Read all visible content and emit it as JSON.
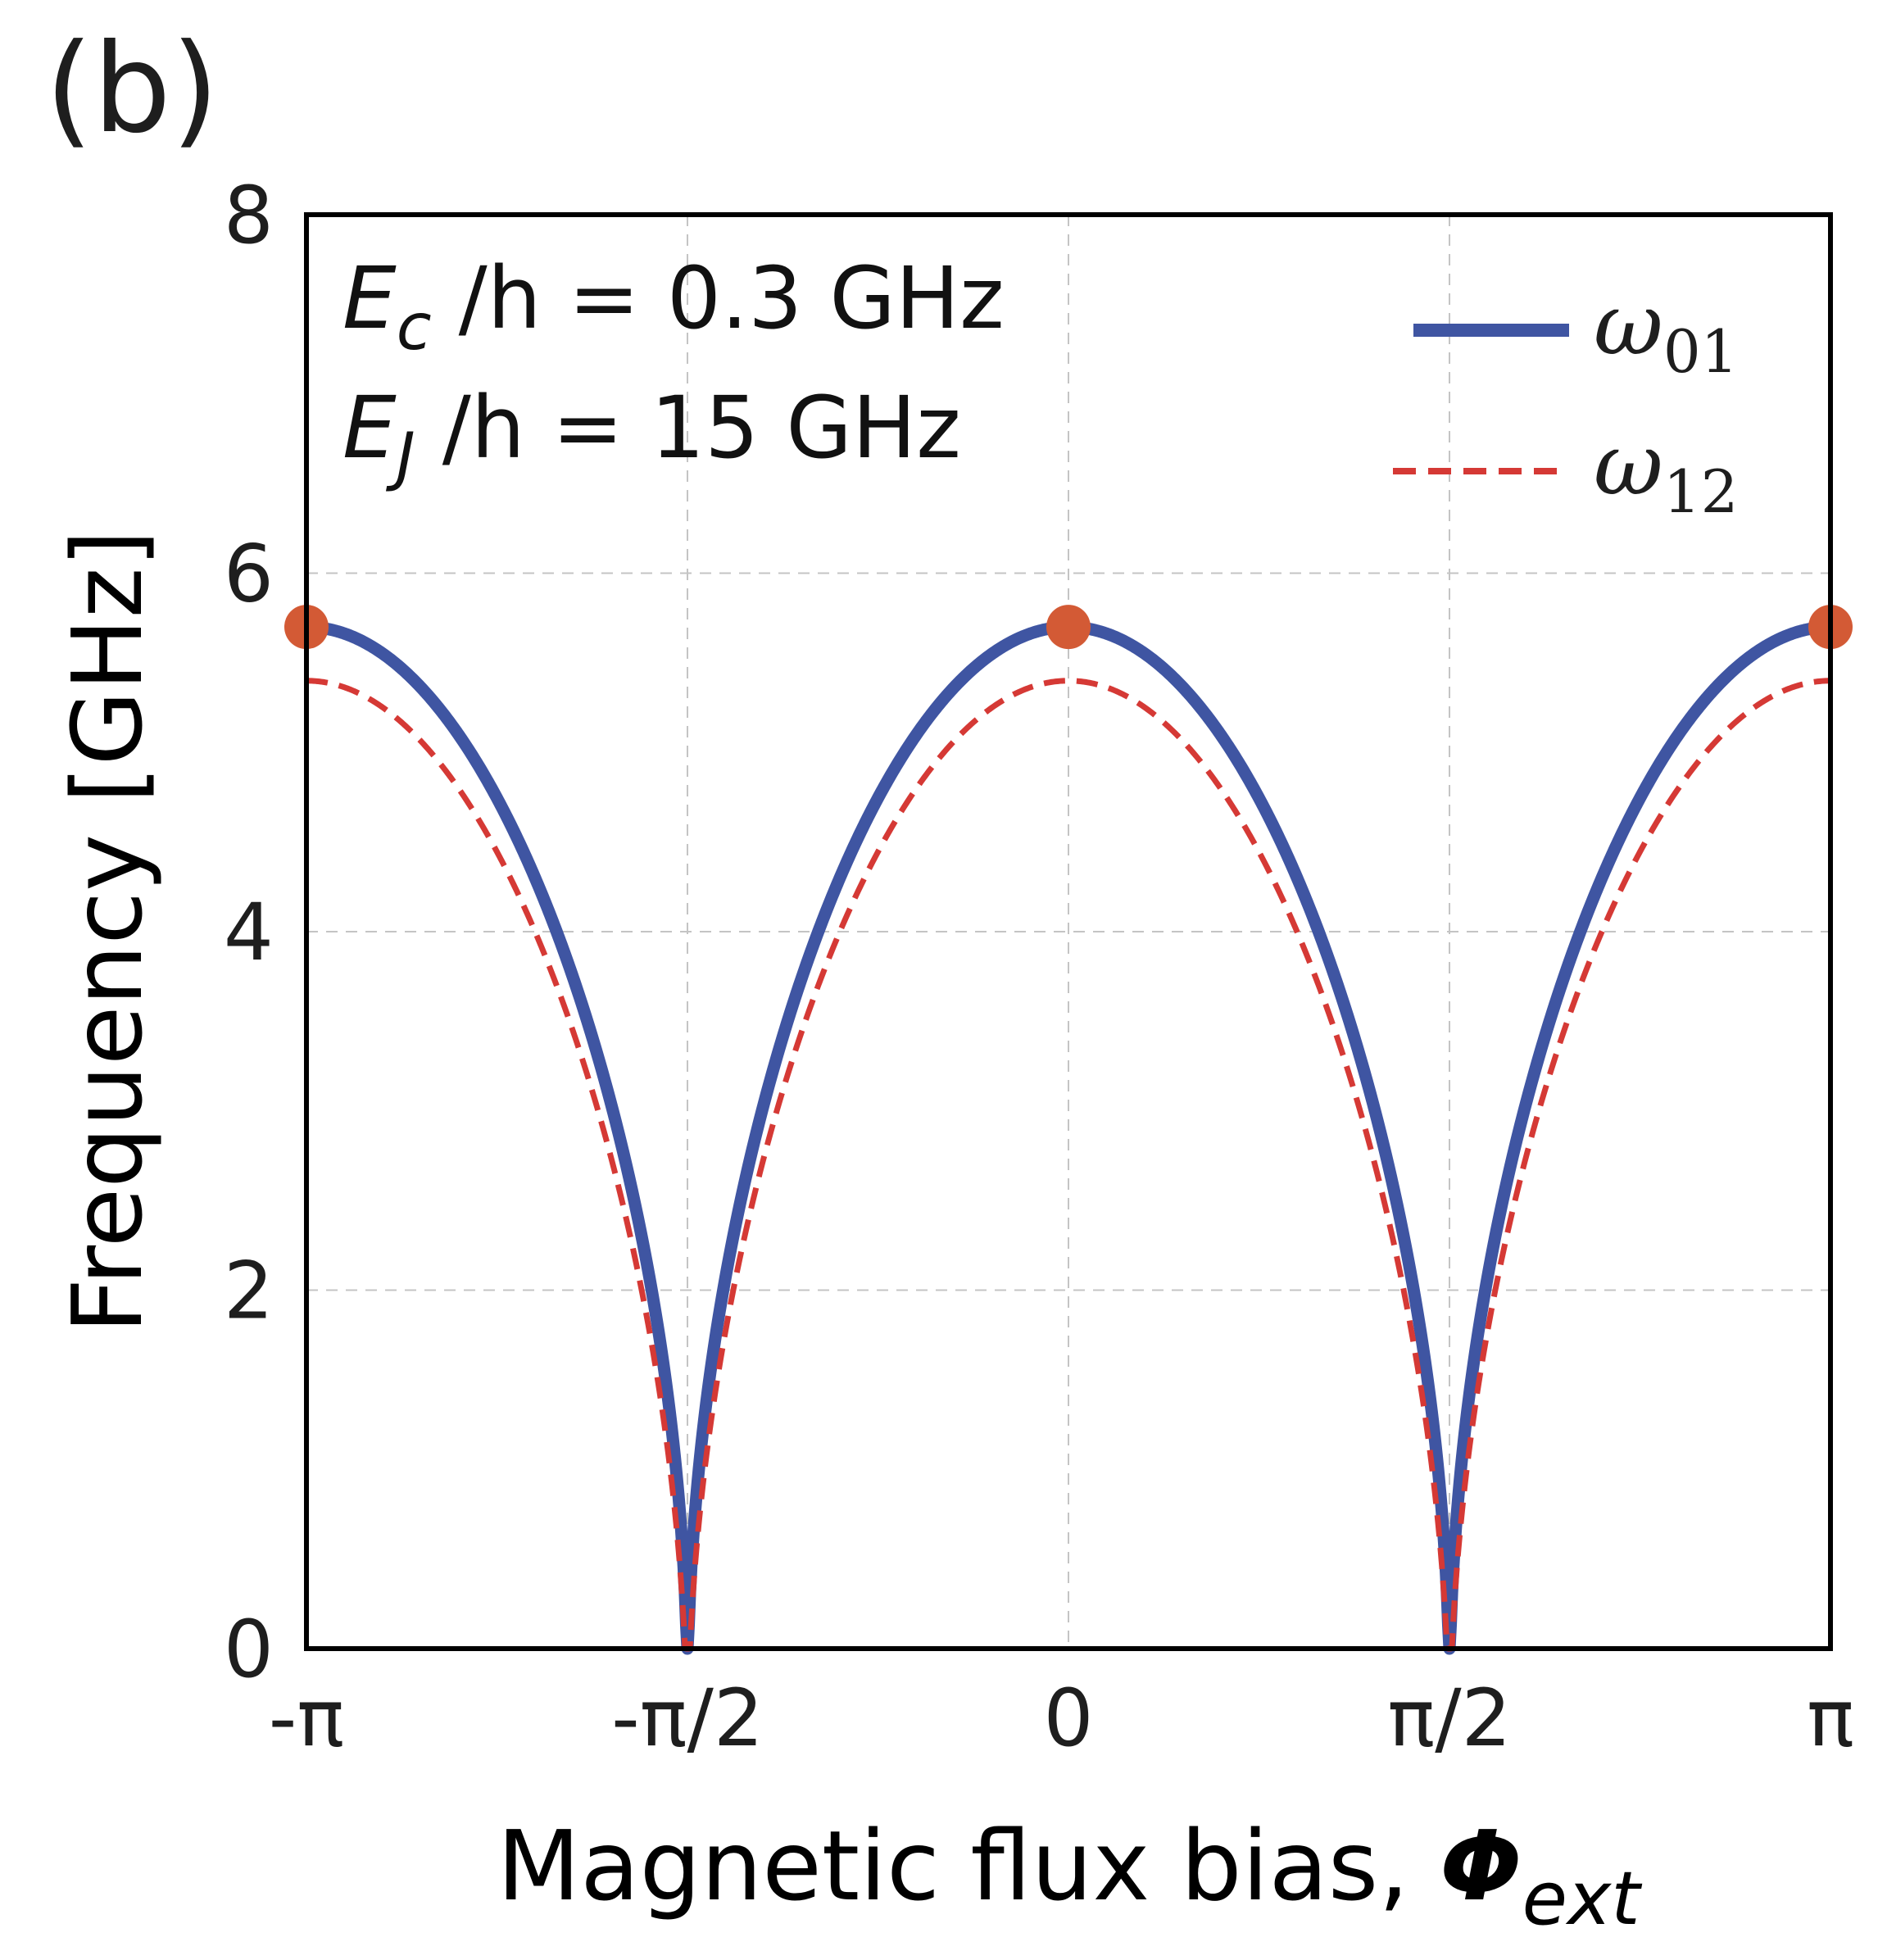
{
  "chart_data": {
    "type": "line",
    "panel_label": "(b)",
    "xlabel": "Magnetic flux bias, ",
    "xlabel_symbol": "Φ",
    "xlabel_subscript": "ext",
    "ylabel": "Frequency [GHz]",
    "xlim": [
      -3.14159,
      3.14159
    ],
    "ylim": [
      0,
      8
    ],
    "x_ticks": [
      -3.14159,
      -1.5708,
      0,
      1.5708,
      3.14159
    ],
    "x_tick_labels": [
      "-π",
      "-π/2",
      "0",
      "π/2",
      "π"
    ],
    "y_ticks": [
      0,
      2,
      4,
      6,
      8
    ],
    "y_tick_labels": [
      "0",
      "2",
      "4",
      "6",
      "8"
    ],
    "grid": true,
    "legend_position": "top-right",
    "parameters": {
      "Ec_GHz": 0.3,
      "EJ_GHz": 15
    },
    "annotations": [
      {
        "symbol": "E",
        "subscript": "c",
        "text": " /h = 0.3 GHz"
      },
      {
        "symbol": "E",
        "subscript": "J",
        "text": " /h = 15 GHz"
      }
    ],
    "series": [
      {
        "name": "ω",
        "subscript": "01",
        "color": "#3f55a2",
        "style": "solid",
        "x": [
          -3.14159,
          -2.5,
          -2.0,
          -1.8,
          -1.65,
          -1.5708,
          -1.49,
          -1.34,
          -1.14,
          -0.64,
          0,
          0.64,
          1.14,
          1.34,
          1.49,
          1.5708,
          1.65,
          1.8,
          2.0,
          2.5,
          3.14159
        ],
        "y": [
          5.7,
          5.12,
          3.9,
          3.0,
          1.9,
          0.0,
          1.9,
          3.0,
          3.9,
          5.12,
          5.7,
          5.12,
          3.9,
          3.0,
          1.9,
          0.0,
          1.9,
          3.0,
          3.9,
          5.12,
          5.7
        ]
      },
      {
        "name": "ω",
        "subscript": "12",
        "color": "#d53935",
        "style": "dashed",
        "x": [
          -3.14159,
          -2.5,
          -2.0,
          -1.8,
          -1.65,
          -1.5708,
          -1.49,
          -1.34,
          -1.14,
          -0.64,
          0,
          0.64,
          1.14,
          1.34,
          1.49,
          1.5708,
          1.65,
          1.8,
          2.0,
          2.5,
          3.14159
        ],
        "y": [
          5.4,
          4.82,
          3.6,
          2.7,
          1.6,
          0.0,
          1.6,
          2.7,
          3.6,
          4.82,
          5.4,
          4.82,
          3.6,
          2.7,
          1.6,
          0.0,
          1.6,
          2.7,
          3.6,
          4.82,
          5.4
        ]
      }
    ],
    "markers": {
      "color": "#d35a35",
      "x": [
        -3.14159,
        0,
        3.14159
      ],
      "y": [
        5.7,
        5.7,
        5.7
      ]
    }
  }
}
